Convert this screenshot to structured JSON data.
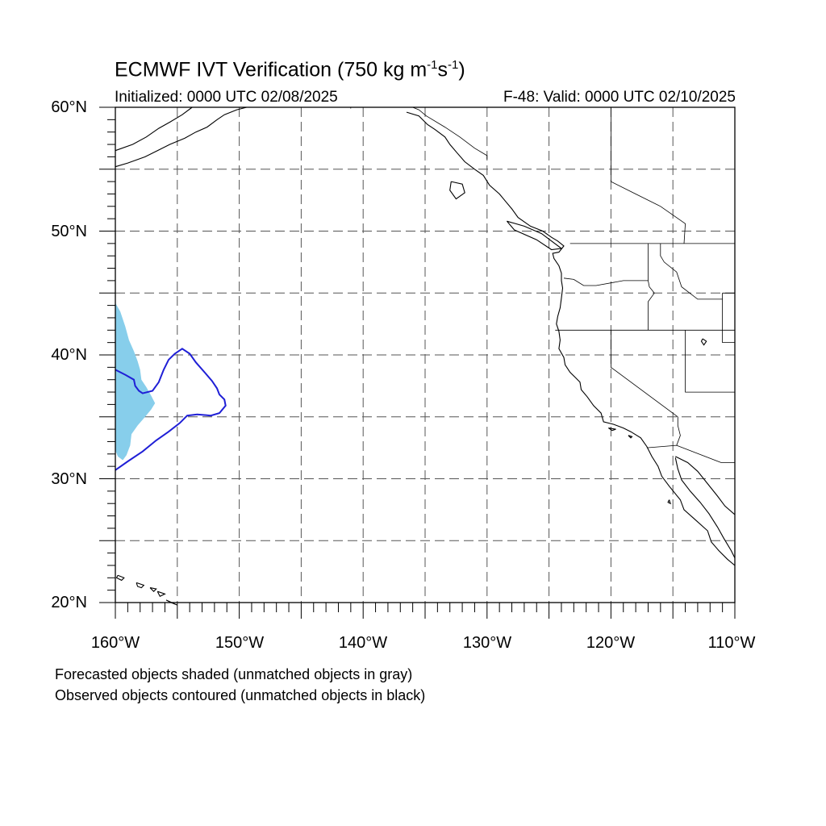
{
  "title": {
    "main": "ECMWF IVT Verification (750 kg m",
    "exp1": "-1",
    "mid": "s",
    "exp2": "-1",
    "end": ")"
  },
  "subtitle_left": "Initialized: 0000 UTC 02/08/2025",
  "subtitle_right": "F-48: Valid: 0000 UTC 02/10/2025",
  "lat_labels": [
    "60°N",
    "50°N",
    "40°N",
    "30°N",
    "20°N"
  ],
  "lon_labels": [
    "160°W",
    "150°W",
    "140°W",
    "130°W",
    "120°W",
    "110°W"
  ],
  "captions": [
    "Forecasted objects shaded (unmatched objects in gray)",
    "Observed objects contoured (unmatched objects in black)"
  ],
  "map": {
    "lon_range": [
      -160,
      -110
    ],
    "lat_range": [
      20,
      60
    ],
    "grid_lon_step": 5,
    "grid_lat_step": 5,
    "grid_style": "dashed",
    "colors": {
      "forecast_fill": "#87ceeb",
      "observed_contour": "#1f1fd6",
      "coastline": "#000000",
      "grid": "#555555"
    },
    "forecast_object_outline": [
      [
        -160,
        44.2
      ],
      [
        -159.6,
        43.5
      ],
      [
        -159.2,
        42.3
      ],
      [
        -158.9,
        41.2
      ],
      [
        -158.5,
        40.3
      ],
      [
        -158.2,
        39.5
      ],
      [
        -158.0,
        38.8
      ],
      [
        -157.9,
        38.0
      ],
      [
        -157.5,
        37.4
      ],
      [
        -157.1,
        36.7
      ],
      [
        -156.8,
        36.1
      ],
      [
        -157.1,
        35.6
      ],
      [
        -157.6,
        35.0
      ],
      [
        -158.2,
        34.3
      ],
      [
        -158.7,
        33.6
      ],
      [
        -158.8,
        32.7
      ],
      [
        -159.1,
        31.9
      ],
      [
        -159.4,
        31.5
      ],
      [
        -159.8,
        31.8
      ],
      [
        -160,
        32.3
      ]
    ],
    "observed_object_contour": [
      [
        -160,
        30.7
      ],
      [
        -159.0,
        31.4
      ],
      [
        -157.8,
        32.2
      ],
      [
        -156.7,
        33.1
      ],
      [
        -155.7,
        33.8
      ],
      [
        -154.8,
        34.5
      ],
      [
        -154.2,
        35.1
      ],
      [
        -153.4,
        35.2
      ],
      [
        -152.3,
        35.1
      ],
      [
        -151.6,
        35.3
      ],
      [
        -151.1,
        35.9
      ],
      [
        -151.2,
        36.4
      ],
      [
        -151.6,
        36.8
      ],
      [
        -151.8,
        37.3
      ],
      [
        -152.2,
        37.9
      ],
      [
        -152.8,
        38.6
      ],
      [
        -153.5,
        39.4
      ],
      [
        -154.0,
        40.1
      ],
      [
        -154.6,
        40.5
      ],
      [
        -155.2,
        40.1
      ],
      [
        -155.7,
        39.6
      ],
      [
        -156.1,
        38.8
      ],
      [
        -156.5,
        37.8
      ],
      [
        -157.0,
        37.1
      ],
      [
        -157.8,
        36.9
      ],
      [
        -158.1,
        37.1
      ],
      [
        -158.4,
        37.5
      ],
      [
        -158.5,
        38.0
      ],
      [
        -159.2,
        38.4
      ],
      [
        -160,
        38.8
      ]
    ],
    "coastline": [
      [
        -136.5,
        59.6
      ],
      [
        -135.5,
        59.3
      ],
      [
        -134.8,
        58.6
      ],
      [
        -134.2,
        58.2
      ],
      [
        -133.4,
        57.6
      ],
      [
        -133.0,
        57.0
      ],
      [
        -132.4,
        56.3
      ],
      [
        -131.8,
        55.6
      ],
      [
        -131.0,
        55.0
      ],
      [
        -130.3,
        54.5
      ],
      [
        -129.8,
        53.7
      ],
      [
        -129.0,
        53.0
      ],
      [
        -128.5,
        52.4
      ],
      [
        -128.0,
        51.8
      ],
      [
        -127.5,
        51.1
      ],
      [
        -126.5,
        50.4
      ],
      [
        -125.5,
        50.0
      ],
      [
        -124.8,
        49.5
      ],
      [
        -124.3,
        49.2
      ],
      [
        -123.8,
        48.8
      ],
      [
        -124.2,
        48.3
      ],
      [
        -124.7,
        48.2
      ],
      [
        -124.6,
        47.8
      ],
      [
        -124.2,
        47.2
      ],
      [
        -124.0,
        46.6
      ],
      [
        -124.0,
        46.0
      ],
      [
        -123.9,
        45.4
      ],
      [
        -124.0,
        44.6
      ],
      [
        -124.1,
        43.8
      ],
      [
        -124.3,
        43.1
      ],
      [
        -124.4,
        42.5
      ],
      [
        -124.2,
        41.9
      ],
      [
        -124.1,
        41.2
      ],
      [
        -124.2,
        40.5
      ],
      [
        -123.8,
        39.8
      ],
      [
        -123.7,
        39.2
      ],
      [
        -123.3,
        38.6
      ],
      [
        -122.9,
        38.2
      ],
      [
        -122.5,
        37.8
      ],
      [
        -122.4,
        37.2
      ],
      [
        -121.9,
        36.6
      ],
      [
        -121.4,
        35.9
      ],
      [
        -120.8,
        35.3
      ],
      [
        -120.6,
        34.6
      ],
      [
        -119.8,
        34.4
      ],
      [
        -119.0,
        34.1
      ],
      [
        -118.4,
        33.8
      ],
      [
        -117.6,
        33.3
      ],
      [
        -117.1,
        32.6
      ],
      [
        -116.7,
        31.8
      ],
      [
        -116.2,
        31.0
      ],
      [
        -115.9,
        30.2
      ],
      [
        -115.3,
        29.4
      ],
      [
        -114.4,
        28.3
      ],
      [
        -114.1,
        27.5
      ],
      [
        -113.2,
        26.7
      ],
      [
        -112.2,
        25.8
      ],
      [
        -111.9,
        24.9
      ],
      [
        -111.3,
        24.2
      ],
      [
        -110.6,
        23.5
      ],
      [
        -110.0,
        23.0
      ]
    ],
    "baja_gulf_east_coast": [
      [
        -114.8,
        31.8
      ],
      [
        -113.8,
        31.3
      ],
      [
        -113.0,
        30.6
      ],
      [
        -112.2,
        29.6
      ],
      [
        -111.4,
        28.6
      ],
      [
        -110.8,
        27.8
      ],
      [
        -110.0,
        27.1
      ]
    ],
    "baja_gulf_west_coast": [
      [
        -114.8,
        31.7
      ],
      [
        -114.6,
        30.8
      ],
      [
        -114.3,
        29.9
      ],
      [
        -113.6,
        29.0
      ],
      [
        -112.8,
        28.1
      ],
      [
        -112.1,
        27.2
      ],
      [
        -111.4,
        26.1
      ],
      [
        -110.9,
        25.2
      ],
      [
        -110.3,
        24.2
      ],
      [
        -110.0,
        23.6
      ]
    ],
    "asia_coast": [
      [
        -160,
        56.5
      ],
      [
        -158.6,
        57.0
      ],
      [
        -157.5,
        57.6
      ],
      [
        -156.5,
        58.3
      ],
      [
        -155.6,
        58.8
      ],
      [
        -154.6,
        59.4
      ],
      [
        -153.8,
        60.0
      ]
    ],
    "alaska_arc": [
      [
        -160,
        55.2
      ],
      [
        -159.0,
        55.5
      ],
      [
        -157.6,
        56.0
      ],
      [
        -156.6,
        56.5
      ],
      [
        -155.6,
        57.0
      ],
      [
        -154.4,
        57.5
      ],
      [
        -153.5,
        58.0
      ],
      [
        -152.6,
        58.4
      ],
      [
        -151.8,
        59.0
      ],
      [
        -151.2,
        59.4
      ],
      [
        -150.2,
        59.8
      ],
      [
        -149.4,
        60.0
      ]
    ],
    "islands": [
      [
        [
          -159.8,
          22.2
        ],
        [
          -159.3,
          22.0
        ],
        [
          -159.5,
          21.8
        ],
        [
          -159.9,
          22.0
        ],
        [
          -159.8,
          22.2
        ]
      ],
      [
        [
          -158.3,
          21.6
        ],
        [
          -157.7,
          21.4
        ],
        [
          -157.9,
          21.2
        ],
        [
          -158.2,
          21.3
        ],
        [
          -158.3,
          21.6
        ]
      ],
      [
        [
          -157.2,
          21.2
        ],
        [
          -156.7,
          21.1
        ],
        [
          -156.9,
          20.9
        ],
        [
          -157.2,
          21.2
        ]
      ],
      [
        [
          -156.6,
          20.9
        ],
        [
          -156.0,
          20.7
        ],
        [
          -156.4,
          20.5
        ],
        [
          -156.6,
          20.9
        ]
      ],
      [
        [
          -155.9,
          20.2
        ],
        [
          -155.0,
          19.8
        ],
        [
          -155.5,
          20.0
        ],
        [
          -155.9,
          20.2
        ]
      ],
      [
        [
          -132.9,
          54.0
        ],
        [
          -132.0,
          53.8
        ],
        [
          -131.8,
          53.1
        ],
        [
          -132.5,
          52.6
        ],
        [
          -133.0,
          53.3
        ],
        [
          -132.9,
          54.0
        ]
      ],
      [
        [
          -128.4,
          50.8
        ],
        [
          -127.0,
          50.4
        ],
        [
          -125.6,
          49.8
        ],
        [
          -124.0,
          48.6
        ],
        [
          -124.8,
          48.5
        ],
        [
          -126.0,
          49.3
        ],
        [
          -127.8,
          50.1
        ],
        [
          -128.4,
          50.8
        ]
      ],
      [
        [
          -118.6,
          33.5
        ],
        [
          -118.3,
          33.4
        ],
        [
          -118.4,
          33.3
        ],
        [
          -118.6,
          33.5
        ]
      ],
      [
        [
          -120.2,
          34.1
        ],
        [
          -119.6,
          34.0
        ],
        [
          -119.9,
          33.9
        ],
        [
          -120.2,
          34.1
        ]
      ],
      [
        [
          -115.3,
          28.3
        ],
        [
          -115.2,
          28.0
        ],
        [
          -115.4,
          28.1
        ],
        [
          -115.3,
          28.3
        ]
      ],
      [
        [
          -112.6,
          41.3
        ],
        [
          -112.3,
          41.1
        ],
        [
          -112.5,
          40.8
        ],
        [
          -112.7,
          41.1
        ],
        [
          -112.6,
          41.3
        ]
      ]
    ],
    "borders": [
      [
        [
          -123.3,
          49.0
        ],
        [
          -110,
          49.0
        ]
      ],
      [
        [
          -124.5,
          42.0
        ],
        [
          -110,
          42.0
        ]
      ],
      [
        [
          -120.0,
          42.0
        ],
        [
          -120.0,
          39.0
        ],
        [
          -114.6,
          35.0
        ]
      ],
      [
        [
          -117.0,
          49.0
        ],
        [
          -117.0,
          46.0
        ],
        [
          -116.9,
          45.5
        ],
        [
          -116.5,
          45.0
        ],
        [
          -117.0,
          44.3
        ],
        [
          -117.0,
          42.0
        ]
      ],
      [
        [
          -123.8,
          46.2
        ],
        [
          -123.0,
          46.1
        ],
        [
          -122.2,
          45.6
        ],
        [
          -121.2,
          45.6
        ],
        [
          -119.0,
          46.0
        ],
        [
          -117.0,
          46.0
        ]
      ],
      [
        [
          -114.0,
          42.0
        ],
        [
          -114.0,
          37.0
        ],
        [
          -110,
          37.0
        ]
      ],
      [
        [
          -111.0,
          45.0
        ],
        [
          -110,
          45.0
        ],
        [
          -110,
          41.0
        ],
        [
          -111.0,
          41.0
        ],
        [
          -111.0,
          45.0
        ]
      ],
      [
        [
          -116.0,
          49.0
        ],
        [
          -116.0,
          48.0
        ],
        [
          -115.7,
          47.5
        ],
        [
          -114.7,
          46.7
        ],
        [
          -114.3,
          45.5
        ],
        [
          -113.0,
          44.5
        ],
        [
          -111.0,
          44.5
        ]
      ],
      [
        [
          -117.1,
          32.5
        ],
        [
          -114.7,
          32.7
        ],
        [
          -111.1,
          31.3
        ],
        [
          -110,
          31.3
        ]
      ],
      [
        [
          -114.6,
          35.0
        ],
        [
          -114.6,
          34.3
        ],
        [
          -114.4,
          33.5
        ],
        [
          -114.7,
          32.7
        ]
      ],
      [
        [
          -130.0,
          55.8
        ],
        [
          -130.0,
          56.1
        ],
        [
          -131.0,
          56.7
        ],
        [
          -132.2,
          57.6
        ],
        [
          -133.4,
          58.4
        ],
        [
          -134.9,
          59.3
        ],
        [
          -135.5,
          59.8
        ],
        [
          -136.0,
          60.0
        ]
      ],
      [
        [
          -141.0,
          60.0
        ],
        [
          -141.0,
          59.9
        ]
      ],
      [
        [
          -120.0,
          60.0
        ],
        [
          -120.0,
          54.0
        ],
        [
          -118.0,
          53.0
        ],
        [
          -116.0,
          52.0
        ],
        [
          -114.0,
          50.6
        ],
        [
          -114.1,
          49.0
        ]
      ]
    ]
  }
}
